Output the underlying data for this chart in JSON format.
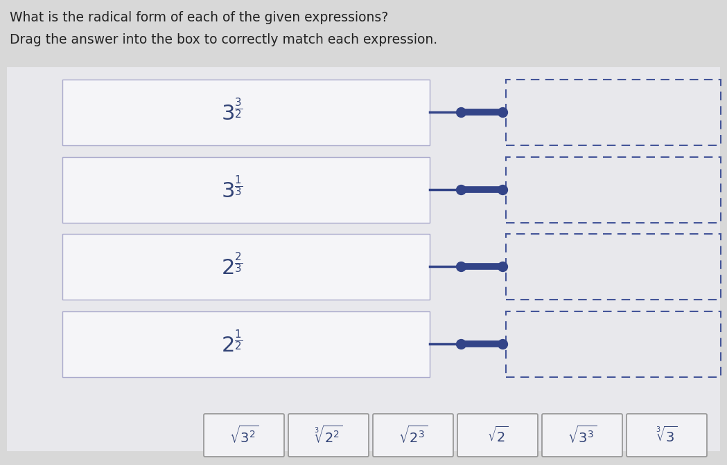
{
  "title1": "What is the radical form of each of the given expressions?",
  "title2": "Drag the answer into the box to correctly match each expression.",
  "bg_color": "#d8d8d8",
  "panel_bg": "#e8e8ec",
  "box_bg": "#f5f5f8",
  "box_border": "#aaaacc",
  "left_expressions": [
    {
      "base": "3",
      "num": "3",
      "den": "2"
    },
    {
      "base": "3",
      "num": "1",
      "den": "3"
    },
    {
      "base": "2",
      "num": "2",
      "den": "3"
    },
    {
      "base": "2",
      "num": "1",
      "den": "2"
    }
  ],
  "card_labels_latex": [
    "\\sqrt{3^2}",
    "\\sqrt[3]{2^2}",
    "\\sqrt{2^3}",
    "\\sqrt{2}",
    "\\sqrt{3^3}",
    "\\sqrt[3]{3}"
  ],
  "line_color": "#334488",
  "dot_color": "#334488",
  "dashed_color": "#445599",
  "text_color": "#334477"
}
